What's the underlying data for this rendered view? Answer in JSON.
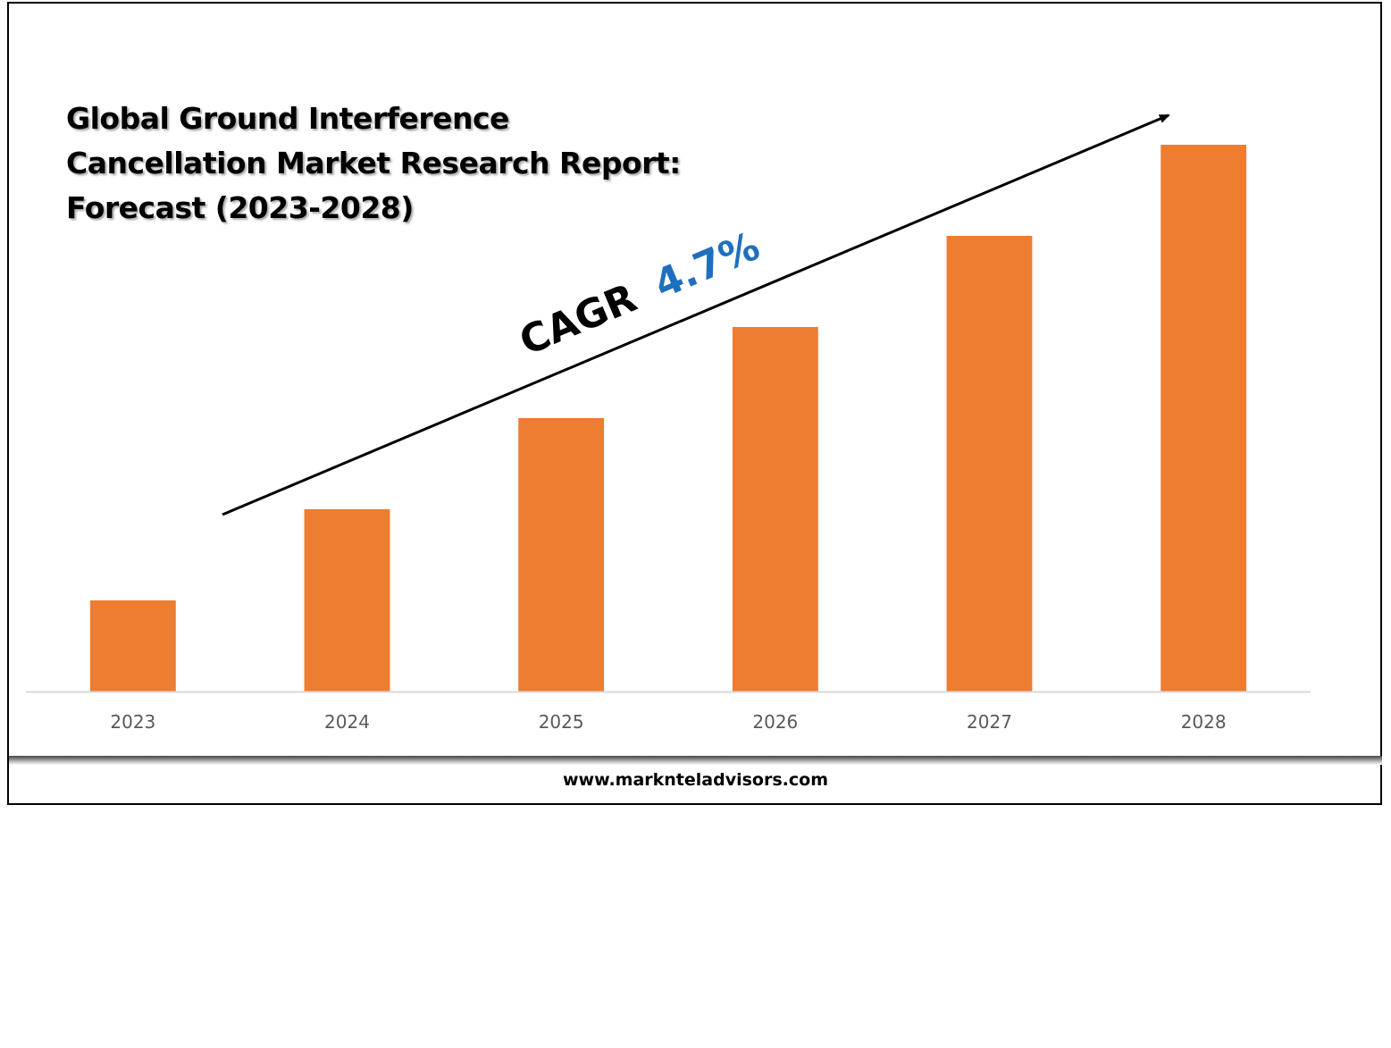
{
  "chart_data": {
    "type": "bar",
    "title": "Global Ground Interference Cancellation Market Research Report: Forecast (2023-2028)",
    "categories": [
      "2023",
      "2024",
      "2025",
      "2026",
      "2027",
      "2028"
    ],
    "values": [
      1,
      2,
      3,
      4,
      5,
      6
    ],
    "xlabel": "",
    "ylabel": "",
    "ylim": [
      0,
      6
    ],
    "grid": false,
    "legend": "none",
    "bar_color": "#ED7D31",
    "annotation": {
      "label": "CAGR",
      "value": "4.7%",
      "value_color": "#1F6FBF"
    }
  },
  "title_lines": [
    "Global Ground Interference",
    "Cancellation Market Research Report:",
    "Forecast (2023-2028)"
  ],
  "footer": {
    "website": "www.marknteladvisors.com"
  }
}
